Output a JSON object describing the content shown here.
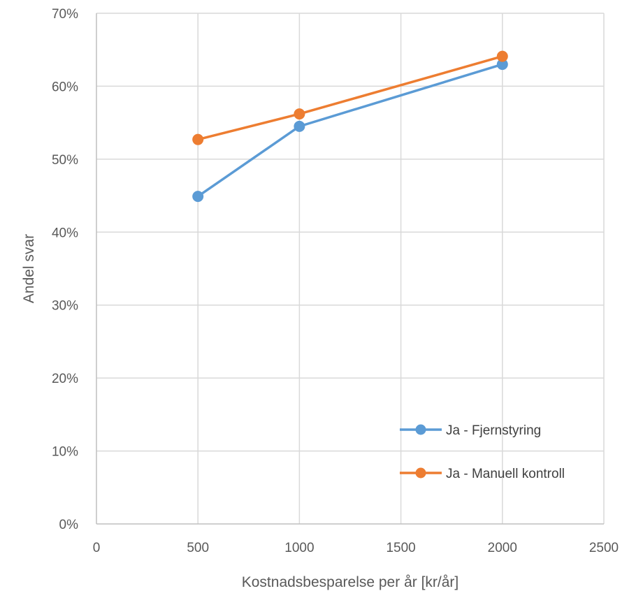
{
  "chart_data": {
    "type": "line",
    "xlabel": "Kostnadsbesparelse per år [kr/år]",
    "ylabel": "Andel svar",
    "xlim": [
      0,
      2500
    ],
    "ylim": [
      0,
      0.7
    ],
    "x_ticks": [
      0,
      500,
      1000,
      1500,
      2000,
      2500
    ],
    "x_tick_labels": [
      "0",
      "500",
      "1000",
      "1500",
      "2000",
      "2500"
    ],
    "y_ticks": [
      0,
      0.1,
      0.2,
      0.3,
      0.4,
      0.5,
      0.6,
      0.7
    ],
    "y_tick_labels": [
      "0%",
      "10%",
      "20%",
      "30%",
      "40%",
      "50%",
      "60%",
      "70%"
    ],
    "grid": true,
    "legend_position": "bottom-right",
    "series": [
      {
        "name": "Ja - Fjernstyring",
        "color": "#5B9BD5",
        "x": [
          500,
          1000,
          2000
        ],
        "y": [
          0.449,
          0.545,
          0.63
        ]
      },
      {
        "name": "Ja - Manuell kontroll",
        "color": "#ED7D31",
        "x": [
          500,
          1000,
          2000
        ],
        "y": [
          0.527,
          0.562,
          0.641
        ]
      }
    ]
  }
}
